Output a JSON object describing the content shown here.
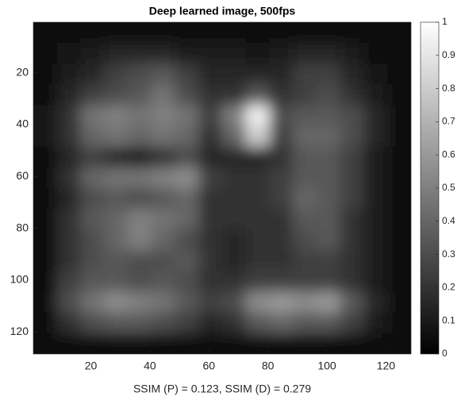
{
  "chart_data": {
    "type": "heatmap",
    "title": "Deep learned image, 500fps",
    "xlabel": "SSIM (P) = 0.123, SSIM (D) = 0.279",
    "colormap": "gray",
    "xlim": [
      0.5,
      128.5
    ],
    "ylim": [
      0.5,
      128.5
    ],
    "y_reversed": true,
    "xticks": [
      20,
      40,
      60,
      80,
      100,
      120
    ],
    "yticks": [
      20,
      40,
      60,
      80,
      100,
      120
    ],
    "clim": [
      0,
      1
    ],
    "colorbar_ticks": [
      0,
      0.1,
      0.2,
      0.3,
      0.4,
      0.5,
      0.6,
      0.7,
      0.8,
      0.9,
      1
    ],
    "z": [
      [
        0.05,
        0.05,
        0.05,
        0.05,
        0.05,
        0.05,
        0.05,
        0.05,
        0.05,
        0.05,
        0.05,
        0.05,
        0.05,
        0.05,
        0.05,
        0.05
      ],
      [
        0.05,
        0.08,
        0.1,
        0.15,
        0.15,
        0.15,
        0.1,
        0.1,
        0.1,
        0.08,
        0.1,
        0.15,
        0.15,
        0.1,
        0.05,
        0.05
      ],
      [
        0.05,
        0.1,
        0.15,
        0.25,
        0.3,
        0.35,
        0.25,
        0.15,
        0.15,
        0.15,
        0.15,
        0.25,
        0.25,
        0.15,
        0.08,
        0.05
      ],
      [
        0.05,
        0.15,
        0.25,
        0.3,
        0.35,
        0.45,
        0.3,
        0.2,
        0.2,
        0.35,
        0.2,
        0.25,
        0.3,
        0.2,
        0.1,
        0.05
      ],
      [
        0.08,
        0.2,
        0.45,
        0.5,
        0.45,
        0.5,
        0.45,
        0.25,
        0.5,
        0.95,
        0.3,
        0.35,
        0.35,
        0.3,
        0.15,
        0.05
      ],
      [
        0.08,
        0.2,
        0.4,
        0.45,
        0.4,
        0.45,
        0.4,
        0.2,
        0.4,
        0.8,
        0.25,
        0.4,
        0.4,
        0.3,
        0.15,
        0.05
      ],
      [
        0.05,
        0.15,
        0.25,
        0.15,
        0.1,
        0.2,
        0.3,
        0.15,
        0.15,
        0.15,
        0.2,
        0.35,
        0.35,
        0.25,
        0.1,
        0.05
      ],
      [
        0.05,
        0.2,
        0.4,
        0.45,
        0.45,
        0.5,
        0.55,
        0.25,
        0.2,
        0.2,
        0.25,
        0.35,
        0.35,
        0.25,
        0.1,
        0.05
      ],
      [
        0.05,
        0.15,
        0.3,
        0.35,
        0.3,
        0.35,
        0.4,
        0.2,
        0.2,
        0.2,
        0.25,
        0.4,
        0.35,
        0.25,
        0.1,
        0.05
      ],
      [
        0.05,
        0.2,
        0.35,
        0.4,
        0.5,
        0.45,
        0.4,
        0.2,
        0.2,
        0.2,
        0.2,
        0.35,
        0.35,
        0.2,
        0.1,
        0.05
      ],
      [
        0.05,
        0.2,
        0.3,
        0.4,
        0.5,
        0.4,
        0.3,
        0.2,
        0.15,
        0.2,
        0.2,
        0.3,
        0.35,
        0.2,
        0.1,
        0.05
      ],
      [
        0.05,
        0.2,
        0.3,
        0.35,
        0.3,
        0.3,
        0.35,
        0.2,
        0.15,
        0.2,
        0.2,
        0.25,
        0.25,
        0.2,
        0.1,
        0.05
      ],
      [
        0.05,
        0.25,
        0.35,
        0.35,
        0.3,
        0.35,
        0.3,
        0.2,
        0.2,
        0.25,
        0.25,
        0.25,
        0.25,
        0.2,
        0.1,
        0.05
      ],
      [
        0.05,
        0.3,
        0.45,
        0.55,
        0.5,
        0.45,
        0.35,
        0.25,
        0.3,
        0.55,
        0.6,
        0.55,
        0.6,
        0.35,
        0.15,
        0.05
      ],
      [
        0.05,
        0.2,
        0.3,
        0.35,
        0.35,
        0.3,
        0.25,
        0.15,
        0.2,
        0.35,
        0.4,
        0.35,
        0.35,
        0.25,
        0.1,
        0.05
      ],
      [
        0.05,
        0.05,
        0.05,
        0.05,
        0.05,
        0.05,
        0.05,
        0.05,
        0.05,
        0.05,
        0.05,
        0.05,
        0.05,
        0.05,
        0.05,
        0.05
      ]
    ]
  }
}
